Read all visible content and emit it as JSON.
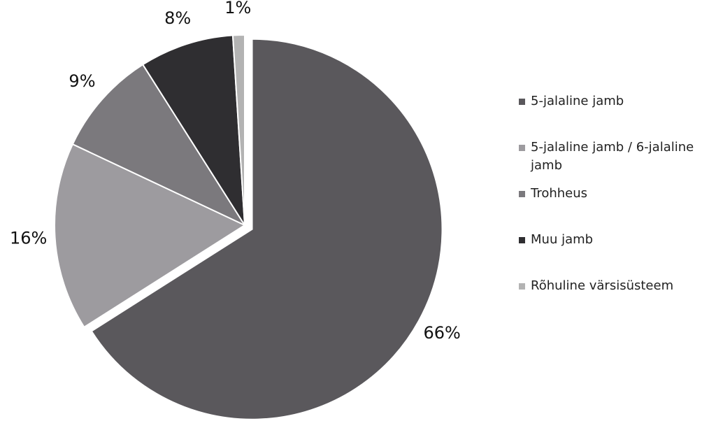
{
  "chart_data": {
    "type": "pie",
    "categories": [
      "5-jalaline jamb",
      "5-jalaline jamb / 6-jalaline jamb",
      "Trohheus",
      "Muu jamb",
      "Rõhuline värsisüsteem"
    ],
    "values": [
      66,
      16,
      9,
      8,
      1
    ],
    "value_labels": [
      "66%",
      "16%",
      "9%",
      "8%",
      "1%"
    ],
    "colors": [
      "#5a585c",
      "#9d9b9f",
      "#7b797d",
      "#2f2e31",
      "#b3b3b3"
    ],
    "legend": "right"
  }
}
